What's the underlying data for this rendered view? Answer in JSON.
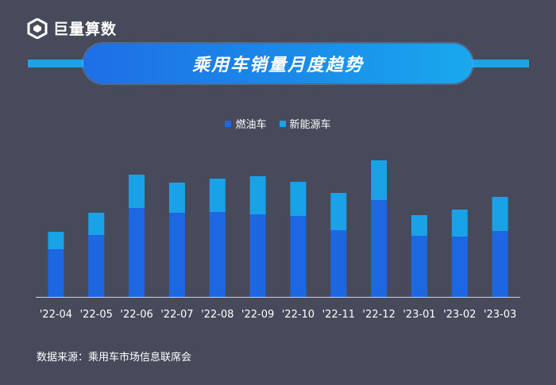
{
  "brand": {
    "name": "巨量算数"
  },
  "header": {
    "title": "乘用车销量月度趋势"
  },
  "footer": {
    "source": "数据来源：乘用车市场信息联席会"
  },
  "colors": {
    "background": "#474a5a",
    "fuel": "#1d67e3",
    "nev": "#19a2e6",
    "axis": "#cfd3dc"
  },
  "chart_data": {
    "type": "bar",
    "stacked": true,
    "title": "乘用车销量月度趋势",
    "legend_position": "top-center",
    "grid": false,
    "categories": [
      "'22-04",
      "'22-05",
      "'22-06",
      "'22-07",
      "'22-08",
      "'22-09",
      "'22-10",
      "'22-11",
      "'22-12",
      "'23-01",
      "'23-02",
      "'23-03"
    ],
    "series": [
      {
        "name": "燃油车",
        "values": [
          60,
          78,
          112,
          106,
          107,
          104,
          102,
          84,
          122,
          77,
          76,
          83
        ]
      },
      {
        "name": "新能源车",
        "values": [
          22,
          28,
          42,
          38,
          42,
          48,
          43,
          47,
          50,
          26,
          34,
          43
        ]
      }
    ],
    "ylim": [
      0,
      172
    ]
  }
}
